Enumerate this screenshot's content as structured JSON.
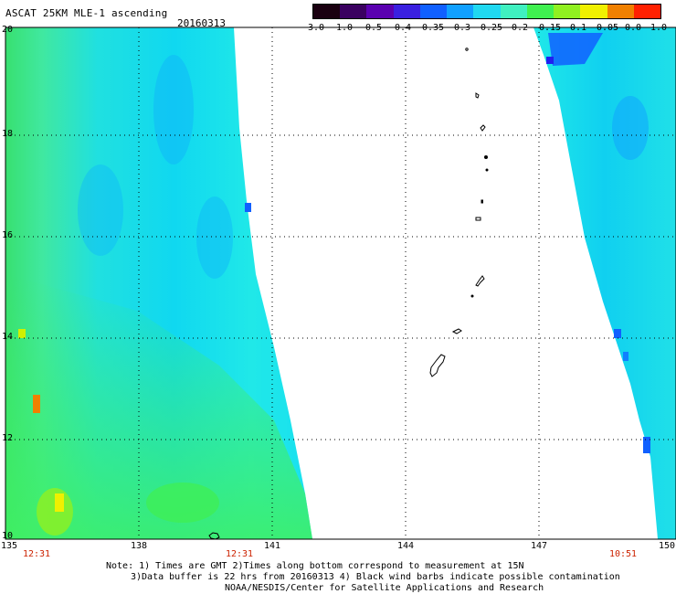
{
  "title": "ASCAT 25KM MLE-1 ascending",
  "date": "20160313",
  "colorbar": {
    "labels": [
      "-3.0",
      "-1.0",
      "-0.5",
      "-0.4",
      "-0.35",
      "-0.3",
      "-0.25",
      "-0.2",
      "-0.15",
      "-0.1",
      "-0.05",
      "0.0",
      "1.0"
    ],
    "colors": [
      "#1a0010",
      "#3a0060",
      "#5a00b0",
      "#3a20e0",
      "#1060ff",
      "#10a0ff",
      "#20d8f0",
      "#40f0c0",
      "#40f050",
      "#90f020",
      "#f0f000",
      "#f08000",
      "#ff2000"
    ]
  },
  "map": {
    "lat_labels": [
      "20",
      "18",
      "16",
      "14",
      "12",
      "10"
    ],
    "lon_labels": [
      "135",
      "138",
      "141",
      "144",
      "147",
      "150"
    ],
    "time_labels": [
      "12:31",
      "12:31",
      "10:51"
    ]
  },
  "notes": {
    "line1": "Note: 1) Times are GMT 2)Times along bottom correspond to measurement at 15N",
    "line2": "3)Data buffer is 22 hrs from 20160313 4) Black wind barbs indicate possible contamination",
    "line3": "NOAA/NESDIS/Center for Satellite Applications and Research"
  }
}
